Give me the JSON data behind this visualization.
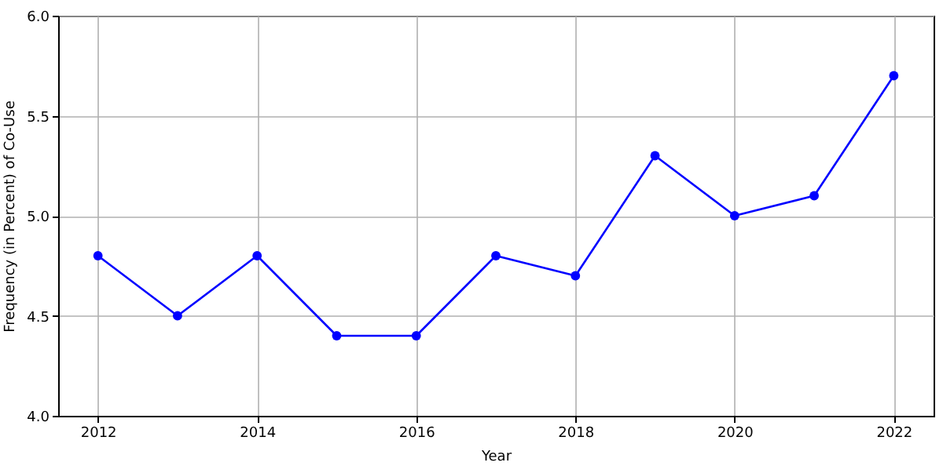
{
  "chart_data": {
    "type": "line",
    "xlabel": "Year",
    "ylabel": "Frequency (in Percent) of Co-Use",
    "x": [
      2012,
      2013,
      2014,
      2015,
      2016,
      2017,
      2018,
      2019,
      2020,
      2021,
      2022
    ],
    "series": [
      {
        "color": "#0000ff",
        "values": [
          4.8,
          4.5,
          4.8,
          4.4,
          4.4,
          4.8,
          4.7,
          5.3,
          5.0,
          5.1,
          5.7
        ]
      }
    ],
    "xlim": [
      2011.5,
      2022.5
    ],
    "xticks": [
      2012,
      2014,
      2016,
      2018,
      2020,
      2022
    ],
    "ylim": [
      4,
      6
    ],
    "yticks": [
      {
        "value": 4,
        "label": "4.0"
      },
      {
        "value": 4.5,
        "label": "4.5"
      },
      {
        "value": 5,
        "label": "5.0"
      },
      {
        "value": 5.5,
        "label": "5.5"
      },
      {
        "value": 6,
        "label": "6.0"
      }
    ],
    "grid": true,
    "marker": "circle",
    "line_style": "solid"
  }
}
